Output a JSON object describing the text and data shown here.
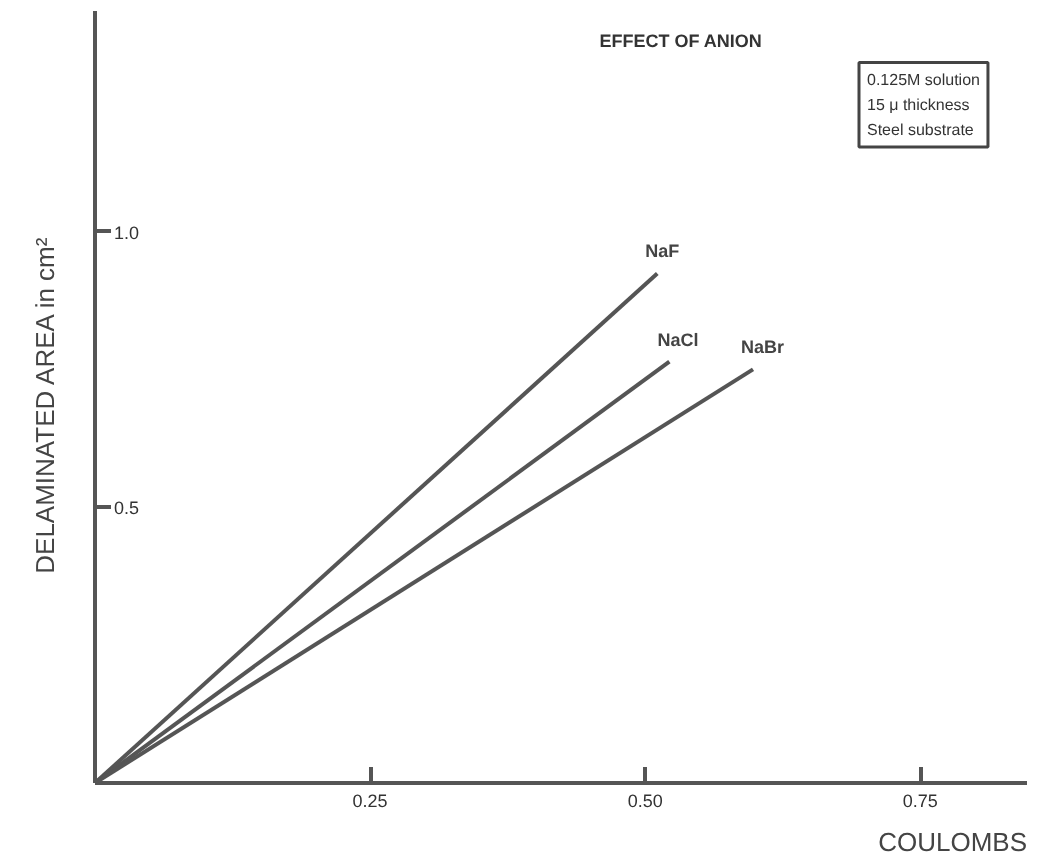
{
  "chart_data": {
    "type": "line",
    "title": "EFFECT OF ANION",
    "xlabel": "COULOMBS",
    "ylabel": "DELAMINATED AREA  in  cm²",
    "xlim": [
      0,
      0.847
    ],
    "ylim": [
      0,
      1.4
    ],
    "xticks": [
      0.25,
      {
        "value": 0.5,
        "label": "0.50"
      },
      0.75
    ],
    "yticks": [
      0.5,
      {
        "value": 1,
        "label": "1.0"
      }
    ],
    "grid": false,
    "marker": "none",
    "line_style": "solid",
    "annotations": [
      "0.125M solution\n15 μ thickness\nSteel substrate"
    ],
    "series": [
      {
        "name": "NaF",
        "color": "#555555",
        "x": [
          0,
          0.511
        ],
        "values": [
          0,
          0.924
        ]
      },
      {
        "name": "NaCl",
        "color": "#555555",
        "x": [
          0,
          0.522
        ],
        "values": [
          0,
          0.764
        ]
      },
      {
        "name": "NaBr",
        "color": "#555555",
        "x": [
          0,
          0.598
        ],
        "values": [
          0,
          0.75
        ]
      }
    ]
  }
}
